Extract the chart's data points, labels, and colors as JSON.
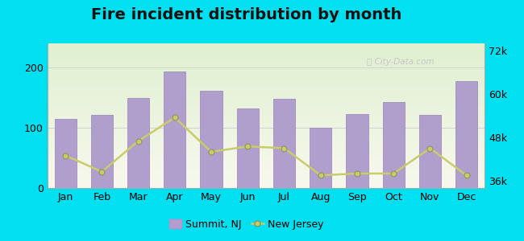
{
  "title": "Fire incident distribution by month",
  "months": [
    "Jan",
    "Feb",
    "Mar",
    "Apr",
    "May",
    "Jun",
    "Jul",
    "Aug",
    "Sep",
    "Oct",
    "Nov",
    "Dec"
  ],
  "bar_values": [
    115,
    122,
    150,
    193,
    162,
    132,
    148,
    100,
    123,
    143,
    122,
    178
  ],
  "line_values": [
    43000,
    38500,
    47000,
    53500,
    44000,
    45500,
    45000,
    37500,
    38000,
    38000,
    45000,
    37500
  ],
  "bar_color": "#b09fcc",
  "line_color": "#c8cc6a",
  "bar_edge_color": "#9880bb",
  "background_outer": "#00e0f0",
  "title_fontsize": 14,
  "tick_fontsize": 9,
  "legend_label_bar": "Summit, NJ",
  "legend_label_line": "New Jersey",
  "ylim_left": [
    0,
    240
  ],
  "ylim_right": [
    34000,
    74000
  ],
  "yticks_left": [
    0,
    100,
    200
  ],
  "yticks_right": [
    36000,
    48000,
    60000,
    72000
  ],
  "ytick_labels_right": [
    "36k",
    "48k",
    "60k",
    "72k"
  ]
}
